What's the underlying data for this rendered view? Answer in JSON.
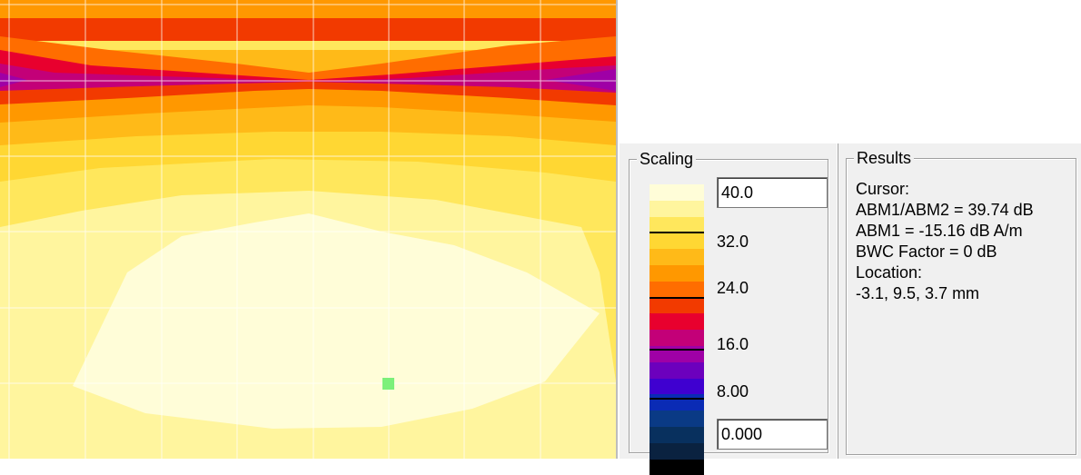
{
  "scaling": {
    "title": "Scaling",
    "max_value": "40.0",
    "min_value": "0.000",
    "tick_labels": [
      "32.0",
      "24.0",
      "16.0",
      "8.00"
    ],
    "colors": [
      "#fffdd8",
      "#fff59e",
      "#ffe75c",
      "#ffd733",
      "#ffba18",
      "#ff9800",
      "#ff6d00",
      "#f23a00",
      "#e8002e",
      "#c30078",
      "#9f00a6",
      "#6c00bd",
      "#3f00d0",
      "#0a2bb5",
      "#0a3a85",
      "#08305e",
      "#0a2240",
      "#000000"
    ]
  },
  "results": {
    "title": "Results",
    "lines": [
      "Cursor:",
      "ABM1/ABM2 = 39.74 dB",
      "ABM1 = -15.16 dB A/m",
      "BWC Factor = 0 dB",
      "Location:",
      "-3.1, 9.5, 3.7 mm"
    ]
  }
}
